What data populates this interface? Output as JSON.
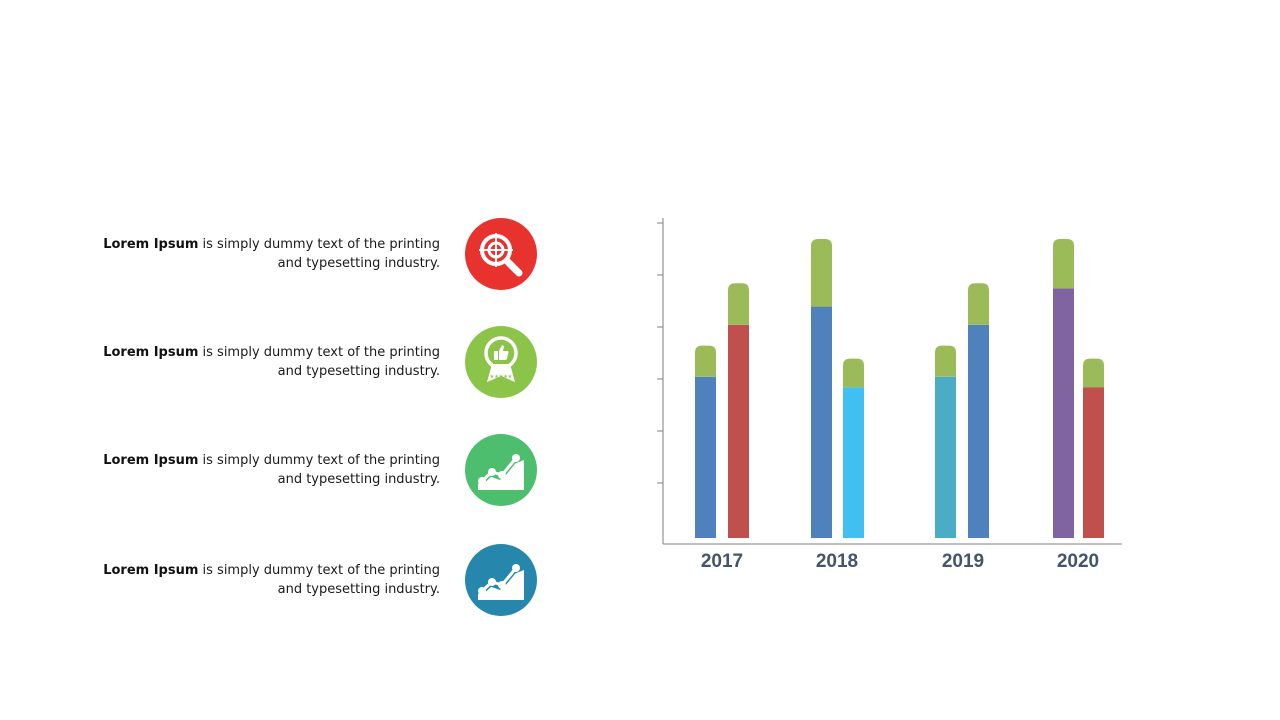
{
  "items": [
    {
      "bold": "Lorem Ipsum",
      "rest": " is simply dummy  text of the printing and typesetting industry.",
      "icon": "target-magnifier-icon",
      "color": "#e8322e"
    },
    {
      "bold": "Lorem Ipsum",
      "rest": " is simply dummy  text of the printing and typesetting industry.",
      "icon": "thumbs-up-badge-icon",
      "color": "#8cc44a"
    },
    {
      "bold": "Lorem Ipsum",
      "rest": " is simply dummy  text of the printing and typesetting industry.",
      "icon": "growth-chart-icon",
      "color": "#4dbd6e"
    },
    {
      "bold": "Lorem Ipsum",
      "rest": " is simply dummy  text of the printing and typesetting industry.",
      "icon": "growth-chart-icon",
      "color": "#2786ab"
    }
  ],
  "chart_data": {
    "type": "bar",
    "stacked": true,
    "categories": [
      "2017",
      "2018",
      "2019",
      "2020"
    ],
    "ylim": [
      0,
      6
    ],
    "grid": false,
    "legend": "none",
    "bars": [
      {
        "category": "2017",
        "base": 3.1,
        "top": 0.6,
        "base_color": "#4f81bd"
      },
      {
        "category": "2017",
        "base": 4.1,
        "top": 0.8,
        "base_color": "#c0504d"
      },
      {
        "category": "2018",
        "base": 4.45,
        "top": 1.3,
        "base_color": "#4f81bd"
      },
      {
        "category": "2018",
        "base": 2.9,
        "top": 0.55,
        "base_color": "#3fc0f0"
      },
      {
        "category": "2019",
        "base": 3.1,
        "top": 0.6,
        "base_color": "#4bacc6"
      },
      {
        "category": "2019",
        "base": 4.1,
        "top": 0.8,
        "base_color": "#4f81bd"
      },
      {
        "category": "2020",
        "base": 4.8,
        "top": 0.95,
        "base_color": "#8064a2"
      },
      {
        "category": "2020",
        "base": 2.9,
        "top": 0.55,
        "base_color": "#c0504d"
      }
    ],
    "top_color": "#9bbb59"
  }
}
